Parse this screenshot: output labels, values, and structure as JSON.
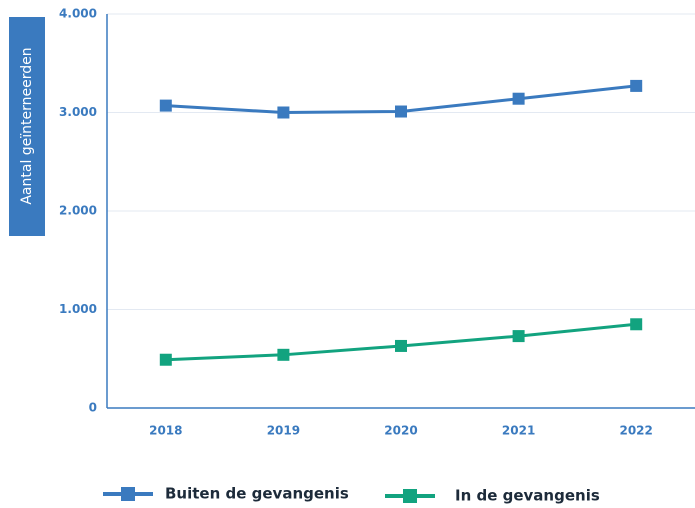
{
  "chart_data": {
    "type": "line",
    "y_label": "Aantal geïnterneerden",
    "categories": [
      "2018",
      "2019",
      "2020",
      "2021",
      "2022"
    ],
    "series": [
      {
        "name": "Buiten de gevangenis",
        "color": "#3a7abf",
        "values": [
          3070,
          3000,
          3010,
          3140,
          3270
        ]
      },
      {
        "name": "In de gevangenis",
        "color": "#12a37f",
        "values": [
          490,
          540,
          630,
          730,
          850
        ]
      }
    ],
    "ylim": [
      0,
      4000
    ],
    "yticks": [
      0,
      {
        "value": 1000,
        "label": "1.000"
      },
      {
        "value": 2000,
        "label": "2.000"
      },
      {
        "value": 3000,
        "label": "3.000"
      },
      {
        "value": 4000,
        "label": "4.000"
      }
    ],
    "grid": true
  }
}
